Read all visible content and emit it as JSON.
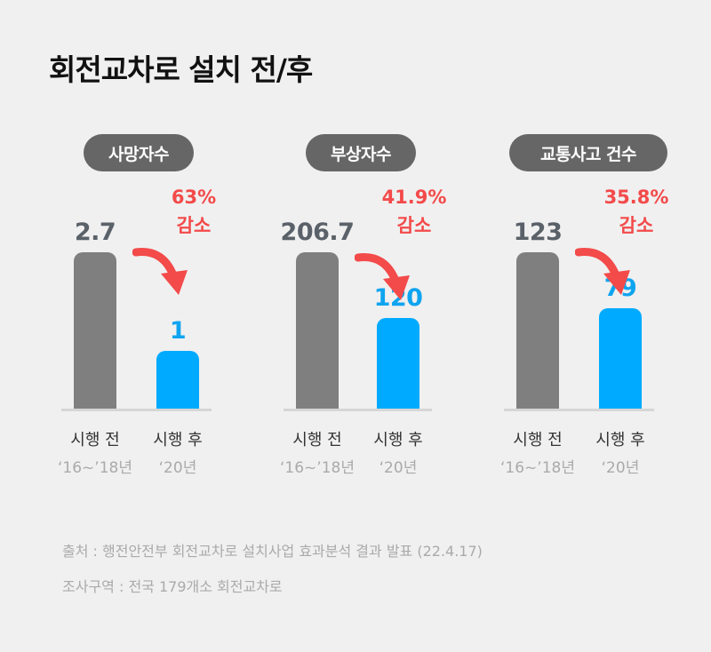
{
  "title": "회전교차로 설치 전/후",
  "chart_data": [
    {
      "type": "bar",
      "title": "사망자수",
      "categories": [
        "시행 전",
        "시행 후"
      ],
      "periods": [
        "‘16~’18년",
        "‘20년"
      ],
      "values": [
        2.7,
        1
      ],
      "value_labels": [
        "2.7",
        "1"
      ],
      "change_pct": "63%",
      "change_label": "감소"
    },
    {
      "type": "bar",
      "title": "부상자수",
      "categories": [
        "시행 전",
        "시행 후"
      ],
      "periods": [
        "‘16~’18년",
        "‘20년"
      ],
      "values": [
        206.7,
        120
      ],
      "value_labels": [
        "206.7",
        "120"
      ],
      "change_pct": "41.9%",
      "change_label": "감소"
    },
    {
      "type": "bar",
      "title": "교통사고 건수",
      "categories": [
        "시행 전",
        "시행 후"
      ],
      "periods": [
        "‘16~’18년",
        "‘20년"
      ],
      "values": [
        123,
        79
      ],
      "value_labels": [
        "123",
        "79"
      ],
      "change_pct": "35.8%",
      "change_label": "감소"
    }
  ],
  "footer": {
    "source": "출처 : 행전안전부 회전교차로 설치사업 효과분석 결과 발표 (22.4.17)",
    "region": "조사구역 : 전국 179개소 회전교차로"
  },
  "colors": {
    "before_bar": "#7f7f7f",
    "after_bar": "#00aaff",
    "decrease": "#f34a4a",
    "pill": "#666666"
  }
}
